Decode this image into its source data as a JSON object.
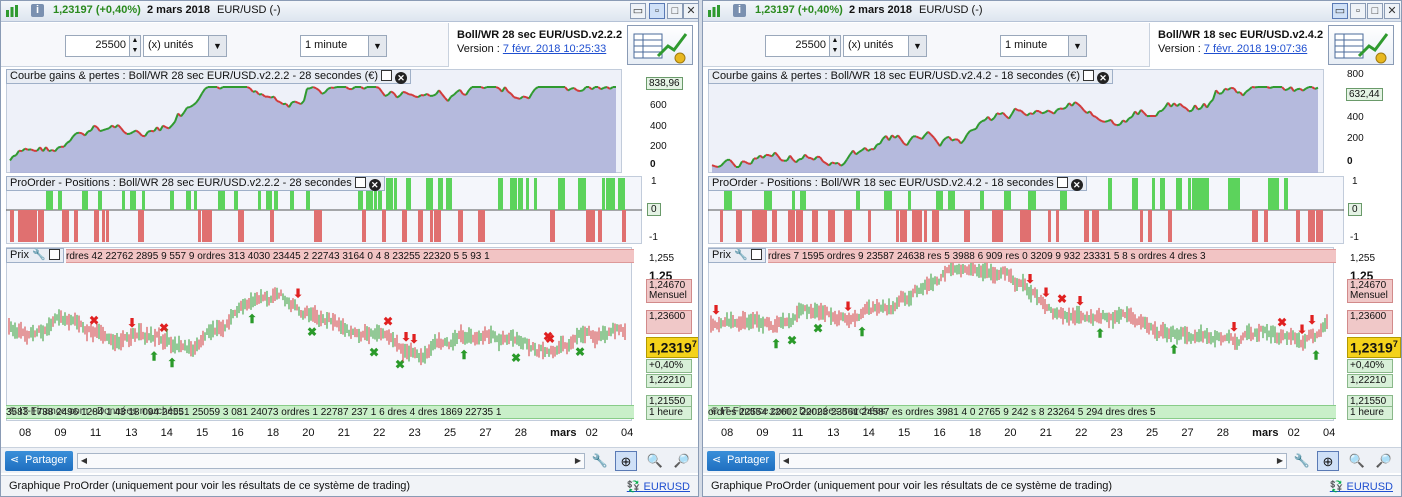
{
  "left": {
    "price": "1,23197 (+0,40%)",
    "date": "2 mars 2018",
    "symbol": "EUR/USD (-)",
    "quantity": "25500",
    "unit_select": "(x) unités",
    "timeframe_select": "1 minute",
    "system_name": "Boll/WR 28 sec EUR/USD.v2.2.2",
    "version_label": "Version :",
    "version_date": "7 févr. 2018 10:25:33",
    "pnl_title": "Courbe gains & pertes : Boll/WR 28 sec EUR/USD.v2.2.2 - 28 secondes (€)",
    "pnl_value": "838,96",
    "pnl_axis": [
      "600",
      "400",
      "200",
      "0"
    ],
    "pos_title": "ProOrder - Positions : Boll/WR 28 sec EUR/USD.v2.2.2 - 28 secondes",
    "pos_axis": [
      "1",
      "0",
      "-1"
    ],
    "price_title": "Prix",
    "price_axis_top": "1,255",
    "tag_125": "1,25",
    "tag_mensuel_val": "1,24670",
    "tag_mensuel": "Mensuel",
    "tag_123600": "1,23600",
    "big_price_main": "1,2319",
    "big_price_sup": "7",
    "pct": "+0,40%",
    "tag_122210": "1,22210",
    "tag_121550": "1,21550",
    "tag_heure": "1 heure",
    "red_strip": "rdres 42 22762 2895 9 557 9  ordres 313 4030 23445 2  22743 3164 0 4 8 23255 22320 5 5 93 1",
    "green_strip": "3583 1738 2496 1284 1 43 18 094 24551  25059 3 081 24073 ordres 1 22787 237 1 6 dres 4 dres 1869 22735 1",
    "credits": "© IT-Finance.com - Données marchées",
    "x_labels": [
      "08",
      "09",
      "11",
      "13",
      "14",
      "15",
      "16",
      "18",
      "20",
      "21",
      "22",
      "23",
      "25",
      "27",
      "28",
      "mars",
      "02",
      "04"
    ]
  },
  "right": {
    "price": "1,23197 (+0,40%)",
    "date": "2 mars 2018",
    "symbol": "EUR/USD (-)",
    "quantity": "25500",
    "unit_select": "(x) unités",
    "timeframe_select": "1 minute",
    "system_name": "Boll/WR 18 sec EUR/USD.v2.4.2",
    "version_label": "Version :",
    "version_date": "7 févr. 2018 19:07:36",
    "pnl_title": "Courbe gains & pertes : Boll/WR 18 sec EUR/USD.v2.4.2 - 18 secondes (€)",
    "pnl_value": "632,44",
    "pnl_axis": [
      "800",
      "600",
      "400",
      "200",
      "0"
    ],
    "pos_title": "ProOrder - Positions : Boll/WR 18 sec EUR/USD.v2.4.2 - 18 secondes",
    "pos_axis": [
      "1",
      "0",
      "-1"
    ],
    "price_title": "Prix",
    "price_axis_top": "1,255",
    "tag_125": "1,25",
    "tag_mensuel_val": "1,24670",
    "tag_mensuel": "Mensuel",
    "tag_123600": "1,23600",
    "big_price_main": "1,2319",
    "big_price_sup": "7",
    "pct": "+0,40%",
    "tag_122210": "1,22210",
    "tag_121550": "1,21550",
    "tag_heure": "1 heure",
    "red_strip": "rdres 7 1595 ordres 9 23587 24638 res 5 3988 6 909 res 0 3209 9 932 23331 5 8 s ordres 4 dres 3",
    "green_strip": "ordres 22554 22602 22023 23561 24587  es  ordres 3981 4 0 2765 9 242  s 8 23264 5 294 dres  dres 5",
    "credits": "© IT-Finance.com - Données marchées",
    "x_labels": [
      "08",
      "09",
      "11",
      "13",
      "14",
      "15",
      "16",
      "18",
      "20",
      "21",
      "22",
      "23",
      "25",
      "27",
      "28",
      "mars",
      "02",
      "04"
    ]
  },
  "bottom": {
    "share_label": "Partager",
    "status_text": "Graphique ProOrder (uniquement pour voir les résultats de ce système de trading)",
    "status_symbol": "EURUSD"
  },
  "colors": {
    "profit": "#2f9a2f",
    "loss": "#d23a3a",
    "pnl_fill": "#aab0d8",
    "pos_long": "#5cd35c",
    "pos_short": "#e07070",
    "accent": "#1f6fc0"
  },
  "icons": [
    "chart-icon",
    "info-icon",
    "restore-icon",
    "maximize-icon",
    "close-icon",
    "spreadsheet-chart-icon",
    "share-icon",
    "wrench-icon",
    "zoom-fit-icon",
    "zoom-out-icon",
    "zoom-in-icon",
    "window-icon",
    "close-panel-icon",
    "currency-icon"
  ]
}
